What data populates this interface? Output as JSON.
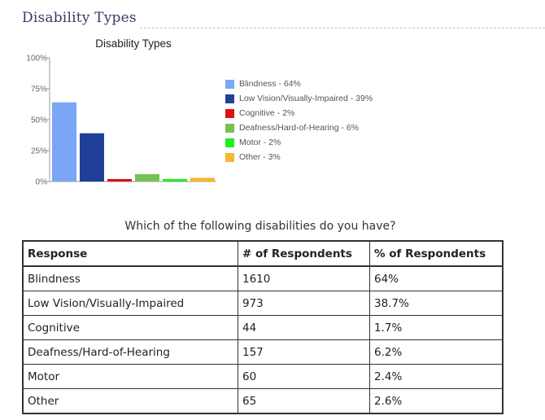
{
  "page": {
    "heading": "Disability Types"
  },
  "chart_data": {
    "type": "bar",
    "title": "Disability Types",
    "categories": [
      "Blindness",
      "Low Vision/Visually-Impaired",
      "Cognitive",
      "Deafness/Hard-of-Hearing",
      "Motor",
      "Other"
    ],
    "values": [
      64,
      39,
      2,
      6,
      2,
      3
    ],
    "legend_labels": [
      "Blindness - 64%",
      "Low Vision/Visually-Impaired - 39%",
      "Cognitive - 2%",
      "Deafness/Hard-of-Hearing - 6%",
      "Motor - 2%",
      "Other - 3%"
    ],
    "colors": [
      "#7aa6f5",
      "#1f3f99",
      "#dd1111",
      "#77c055",
      "#22ee22",
      "#f5b82e"
    ],
    "y_ticks": [
      "0%",
      "25%",
      "50%",
      "75%",
      "100%"
    ],
    "y_tick_values": [
      0,
      25,
      50,
      75,
      100
    ],
    "ylim": [
      0,
      100
    ],
    "grid": false,
    "legend_position": "right",
    "xlabel": "",
    "ylabel": ""
  },
  "table": {
    "caption": "Which of the following disabilities do you have?",
    "headers": [
      "Response",
      "# of Respondents",
      "% of Respondents"
    ],
    "rows": [
      [
        "Blindness",
        "1610",
        "64%"
      ],
      [
        "Low Vision/Visually-Impaired",
        "973",
        "38.7%"
      ],
      [
        "Cognitive",
        "44",
        "1.7%"
      ],
      [
        "Deafness/Hard-of-Hearing",
        "157",
        "6.2%"
      ],
      [
        "Motor",
        "60",
        "2.4%"
      ],
      [
        "Other",
        "65",
        "2.6%"
      ]
    ]
  }
}
